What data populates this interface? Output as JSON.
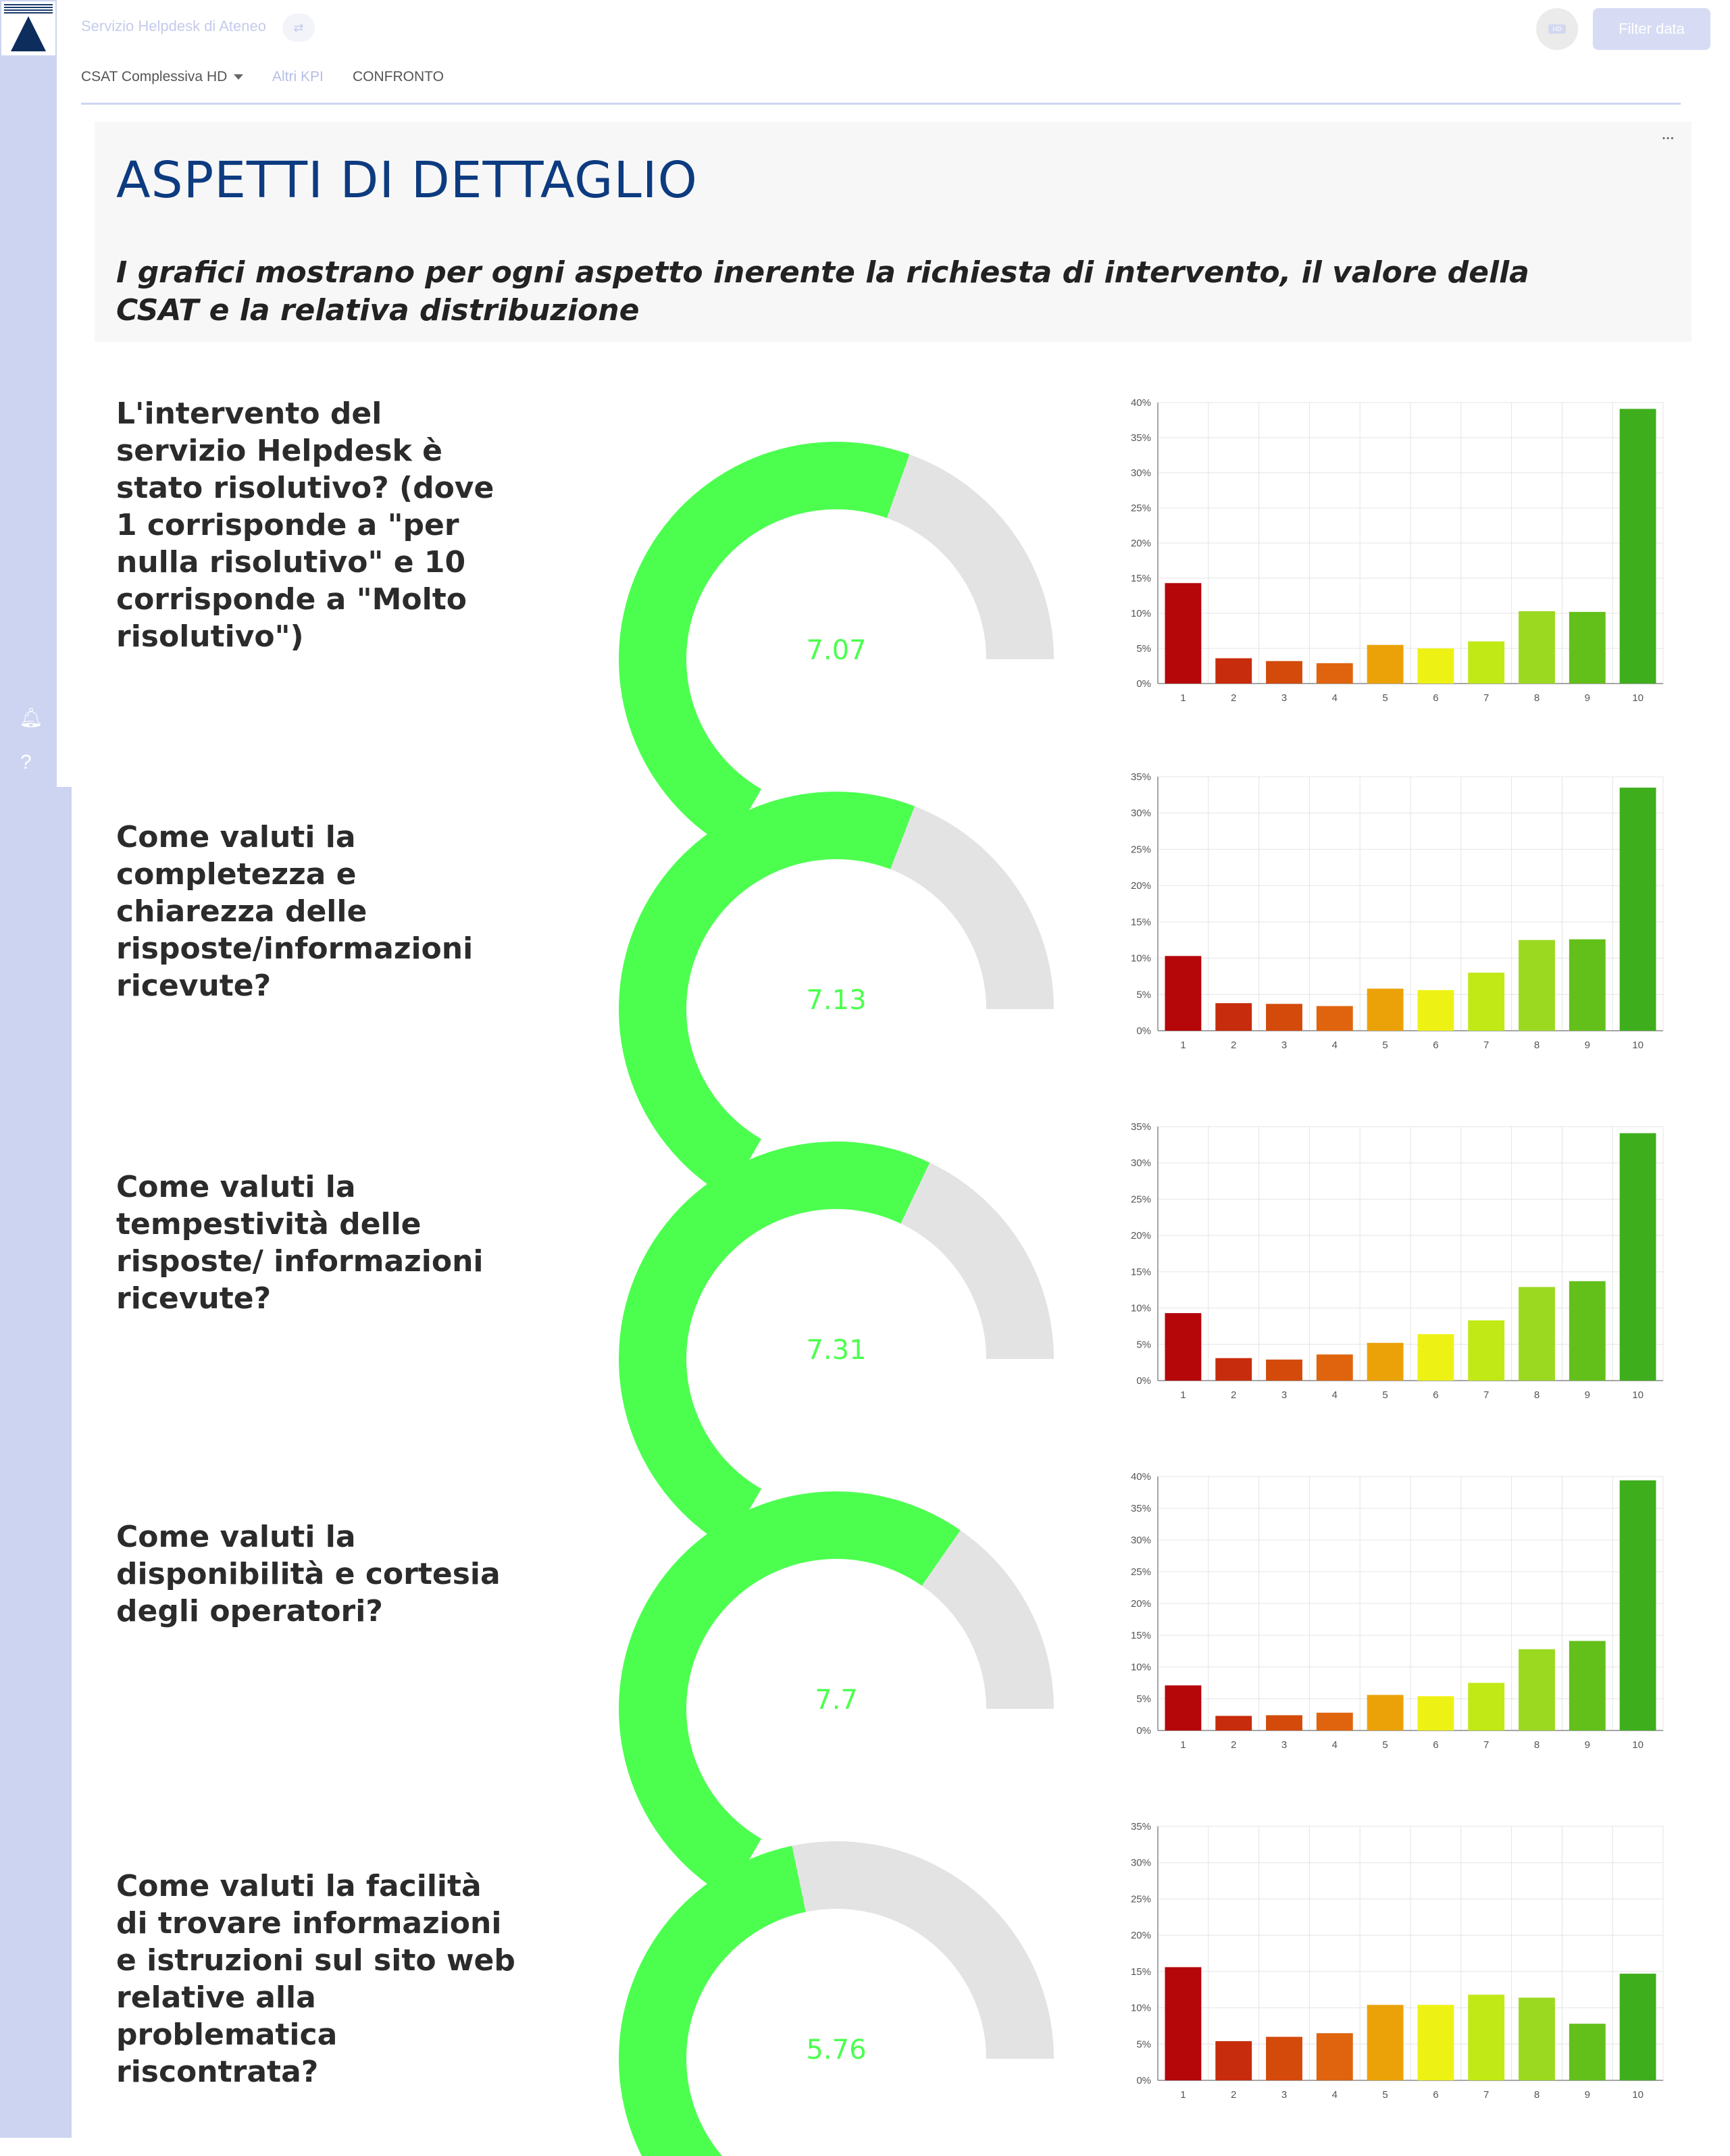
{
  "app": {
    "title": "Servizio Helpdesk di Ateneo",
    "title_icon": "swap-icon",
    "avatar_text": "HD",
    "filter_label": "Filter data"
  },
  "tabs": [
    {
      "label": "CSAT Complessiva HD"
    },
    {
      "label": "Altri KPI"
    },
    {
      "label": "CONFRONTO"
    }
  ],
  "section": {
    "title": "ASPETTI DI DETTAGLIO",
    "subtitle": "I grafici mostrano per ogni aspetto inerente la richiesta di intervento, il valore della CSAT e la relativa distribuzione",
    "menu_label": "..."
  },
  "colors": {
    "gauge_fill": "#4cff4f",
    "gauge_track": "#e3e3e3",
    "gauge_text": "#4cff4f",
    "bars": [
      "#b5060a",
      "#c72c0d",
      "#d44a0b",
      "#e0640d",
      "#eba209",
      "#eef214",
      "#c0e916",
      "#9bd921",
      "#63c01a",
      "#3fae1d"
    ]
  },
  "chart_data": [
    {
      "type": "bar",
      "question": "L'intervento del servizio Helpdesk è stato risolutivo? (dove 1 corrisponde a \"per nulla risolutivo\" e 10 corrisponde a \"Molto risolutivo\")",
      "gauge": {
        "value": 7.07,
        "min": 0,
        "max": 10,
        "label": "7.07"
      },
      "categories": [
        "1",
        "2",
        "3",
        "4",
        "5",
        "6",
        "7",
        "8",
        "9",
        "10"
      ],
      "values": [
        14.3,
        3.6,
        3.2,
        2.9,
        5.5,
        5.0,
        6.0,
        10.3,
        10.2,
        39.1
      ],
      "ylim": [
        0,
        40
      ],
      "yticks": [
        "0%",
        "5%",
        "10%",
        "15%",
        "20%",
        "25%",
        "30%",
        "35%",
        "40%"
      ],
      "xlabel": "",
      "ylabel": "",
      "grid": true
    },
    {
      "type": "bar",
      "question": "Come valuti la completezza e chiarezza delle risposte/informazioni ricevute?",
      "gauge": {
        "value": 7.13,
        "min": 0,
        "max": 10,
        "label": "7.13"
      },
      "categories": [
        "1",
        "2",
        "3",
        "4",
        "5",
        "6",
        "7",
        "8",
        "9",
        "10"
      ],
      "values": [
        10.3,
        3.8,
        3.7,
        3.4,
        5.8,
        5.6,
        8.0,
        12.5,
        12.6,
        33.5
      ],
      "ylim": [
        0,
        35
      ],
      "yticks": [
        "0%",
        "5%",
        "10%",
        "15%",
        "20%",
        "25%",
        "30%",
        "35%"
      ],
      "xlabel": "",
      "ylabel": "",
      "grid": true
    },
    {
      "type": "bar",
      "question": "Come valuti la tempestività  delle risposte/ informazioni ricevute?",
      "gauge": {
        "value": 7.31,
        "min": 0,
        "max": 10,
        "label": "7.31"
      },
      "categories": [
        "1",
        "2",
        "3",
        "4",
        "5",
        "6",
        "7",
        "8",
        "9",
        "10"
      ],
      "values": [
        9.3,
        3.1,
        2.9,
        3.6,
        5.2,
        6.4,
        8.3,
        12.9,
        13.7,
        34.1
      ],
      "ylim": [
        0,
        35
      ],
      "yticks": [
        "0%",
        "5%",
        "10%",
        "15%",
        "20%",
        "25%",
        "30%",
        "35%"
      ],
      "xlabel": "",
      "ylabel": "",
      "grid": true
    },
    {
      "type": "bar",
      "question": "Come valuti la disponibilità  e cortesia degli operatori?",
      "gauge": {
        "value": 7.7,
        "min": 0,
        "max": 10,
        "label": "7.7"
      },
      "categories": [
        "1",
        "2",
        "3",
        "4",
        "5",
        "6",
        "7",
        "8",
        "9",
        "10"
      ],
      "values": [
        7.1,
        2.3,
        2.4,
        2.8,
        5.6,
        5.4,
        7.5,
        12.8,
        14.1,
        39.4
      ],
      "ylim": [
        0,
        40
      ],
      "yticks": [
        "0%",
        "5%",
        "10%",
        "15%",
        "20%",
        "25%",
        "30%",
        "35%",
        "40%"
      ],
      "xlabel": "",
      "ylabel": "",
      "grid": true
    },
    {
      "type": "bar",
      "question": "Come valuti la facilità  di trovare informazioni e istruzioni sul sito web relative alla problematica riscontrata?",
      "gauge": {
        "value": 5.76,
        "min": 0,
        "max": 10,
        "label": "5.76"
      },
      "categories": [
        "1",
        "2",
        "3",
        "4",
        "5",
        "6",
        "7",
        "8",
        "9",
        "10"
      ],
      "values": [
        15.6,
        5.4,
        6.0,
        6.5,
        10.4,
        10.4,
        11.8,
        11.4,
        7.8,
        14.7
      ],
      "ylim": [
        0,
        35
      ],
      "yticks": [
        "0%",
        "5%",
        "10%",
        "15%",
        "20%",
        "25%",
        "30%",
        "35%"
      ],
      "xlabel": "",
      "ylabel": "",
      "grid": true
    }
  ]
}
